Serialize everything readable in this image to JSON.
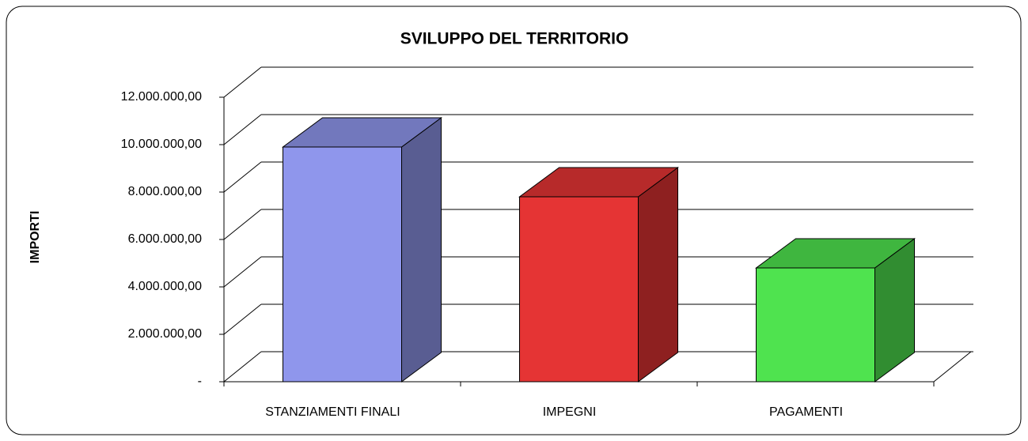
{
  "chart_data": {
    "type": "bar3d",
    "title": "SVILUPPO DEL TERRITORIO",
    "y_label": "IMPORTI",
    "categories": [
      "STANZIAMENTI FINALI",
      "IMPEGNI",
      "PAGAMENTI"
    ],
    "values": [
      9900000,
      7800000,
      4800000
    ],
    "colors": [
      "#8f96ec",
      "#e53434",
      "#4fe34f"
    ],
    "ylim": [
      0,
      12000000
    ],
    "yticks": [
      {
        "value": 0,
        "label": "-"
      },
      {
        "value": 2000000,
        "label": "2.000.000,00"
      },
      {
        "value": 4000000,
        "label": "4.000.000,00"
      },
      {
        "value": 6000000,
        "label": "6.000.000,00"
      },
      {
        "value": 8000000,
        "label": "8.000.000,00"
      },
      {
        "value": 10000000,
        "label": "10.000.000,00"
      },
      {
        "value": 12000000,
        "label": "12.000.000,00"
      }
    ],
    "grid": true
  }
}
